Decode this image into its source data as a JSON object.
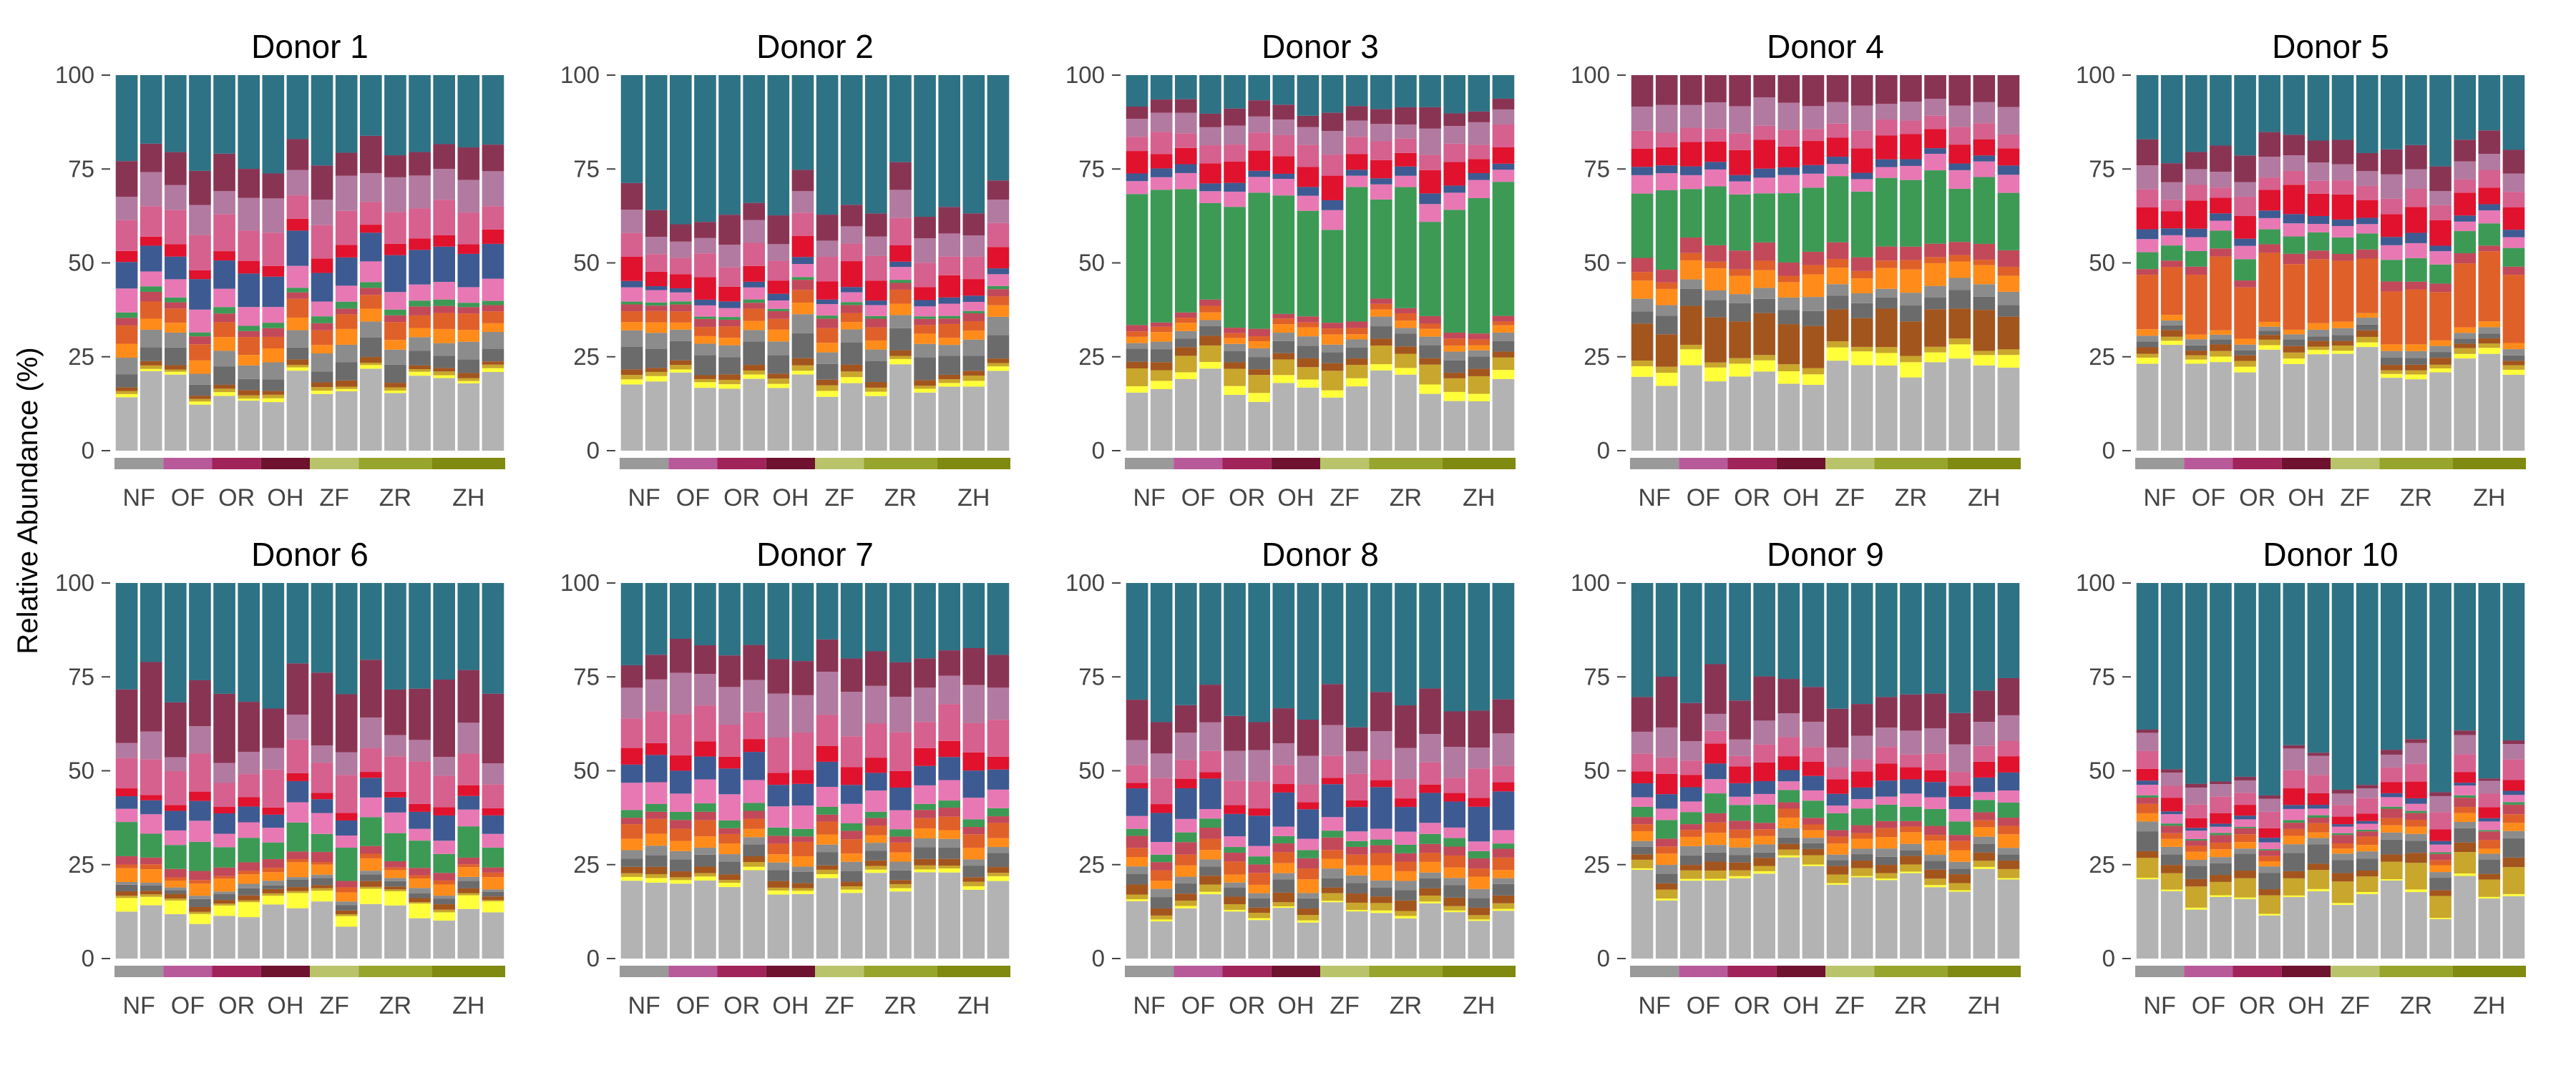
{
  "chart_data": {
    "type": "bar",
    "stacked": true,
    "ylabel": "Relative Abundance (%)",
    "ylim": [
      0,
      100
    ],
    "yticks": [
      0,
      25,
      50,
      75,
      100
    ],
    "grid": false,
    "bars_per_panel": 16,
    "groups": [
      {
        "label": "NF",
        "color": "#9a9a9a",
        "bars": 2
      },
      {
        "label": "OF",
        "color": "#b85a9a",
        "bars": 2
      },
      {
        "label": "OR",
        "color": "#a0245a",
        "bars": 2
      },
      {
        "label": "OH",
        "color": "#6e1230",
        "bars": 2
      },
      {
        "label": "ZF",
        "color": "#b9c46a",
        "bars": 2
      },
      {
        "label": "ZR",
        "color": "#98a52c",
        "bars": 3
      },
      {
        "label": "ZH",
        "color": "#808a10",
        "bars": 3
      }
    ],
    "taxa": [
      {
        "color": "#b3b3b3"
      },
      {
        "color": "#ffff3a"
      },
      {
        "color": "#c9a62c"
      },
      {
        "color": "#a3551e"
      },
      {
        "color": "#6b6b6b"
      },
      {
        "color": "#8c8c8c"
      },
      {
        "color": "#ff8c1a"
      },
      {
        "color": "#e0602a"
      },
      {
        "color": "#c2495a"
      },
      {
        "color": "#3c9a55"
      },
      {
        "color": "#e878b4"
      },
      {
        "color": "#3e5a92"
      },
      {
        "color": "#e0122e"
      },
      {
        "color": "#d6608e"
      },
      {
        "color": "#b27aa0"
      },
      {
        "color": "#8a3454"
      },
      {
        "color": "#2e7285"
      }
    ],
    "panels": [
      {
        "title": "Donor 1",
        "profile": [
          18,
          0.8,
          0.8,
          1.2,
          4,
          4,
          3,
          4,
          2,
          1.5,
          5,
          8,
          3,
          8,
          8,
          8,
          20.7
        ],
        "noise": 0.3,
        "seed": 1
      },
      {
        "title": "Donor 2",
        "profile": [
          18,
          1.2,
          1.2,
          1.5,
          5,
          4,
          2.5,
          3,
          2,
          0.8,
          3,
          1.5,
          5,
          6,
          6,
          6,
          33.3
        ],
        "noise": 0.3,
        "seed": 2
      },
      {
        "title": "Donor 3",
        "profile": [
          18,
          2,
          4,
          2,
          3,
          2,
          2,
          1.5,
          1.5,
          30,
          4,
          2,
          5,
          5,
          5,
          4,
          9
        ],
        "noise": 0.3,
        "seed": 3
      },
      {
        "title": "Donor 4",
        "profile": [
          21,
          3.5,
          1.5,
          10,
          4,
          3,
          5,
          2,
          4,
          17,
          4,
          2,
          6,
          4,
          6,
          7,
          0
        ],
        "noise": 0.25,
        "seed": 4
      },
      {
        "title": "Donor 5",
        "profile": [
          22,
          1.2,
          1.2,
          1.5,
          1.5,
          1.5,
          1.5,
          17,
          2,
          5,
          3,
          2,
          6,
          4,
          5,
          6,
          19.6
        ],
        "noise": 0.3,
        "seed": 5
      },
      {
        "title": "Donor 6",
        "profile": [
          12,
          3,
          0.5,
          1,
          1.5,
          1,
          3,
          1,
          2,
          7,
          4,
          5,
          2,
          8,
          6,
          16,
          27
        ],
        "noise": 0.35,
        "seed": 6
      },
      {
        "title": "Donor 7",
        "profile": [
          20,
          1,
          1,
          1.5,
          3,
          2,
          2.5,
          3.5,
          2,
          2,
          6,
          6,
          4,
          9,
          10,
          8,
          18.5
        ],
        "noise": 0.25,
        "seed": 7
      },
      {
        "title": "Donor 8",
        "profile": [
          13,
          0.5,
          1.5,
          2,
          3,
          2,
          3,
          3,
          2.5,
          2,
          3,
          8,
          2,
          6,
          7,
          9,
          33.5
        ],
        "noise": 0.3,
        "seed": 8
      },
      {
        "title": "Donor 9",
        "profile": [
          21,
          0.5,
          2,
          2,
          2,
          2,
          3,
          2,
          2,
          4,
          3,
          4,
          4,
          4,
          6,
          10,
          28.5
        ],
        "noise": 0.3,
        "seed": 9
      },
      {
        "title": "Donor 10",
        "profile": [
          16,
          0.5,
          5,
          2,
          4,
          2,
          2,
          2,
          2,
          0.5,
          2,
          1,
          3,
          4,
          4,
          1,
          49
        ],
        "noise": 0.3,
        "seed": 10
      }
    ]
  }
}
